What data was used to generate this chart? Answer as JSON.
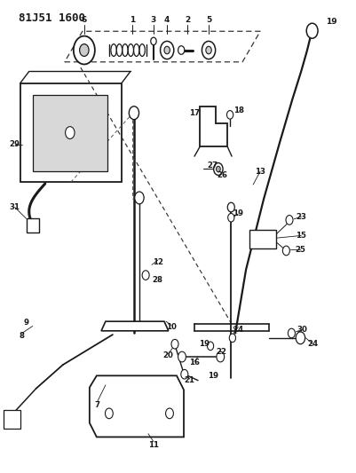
{
  "title_code": "81J51 1600",
  "bg_color": "#ffffff",
  "line_color": "#1a1a1a",
  "fig_width": 4.02,
  "fig_height": 5.33,
  "dpi": 100
}
